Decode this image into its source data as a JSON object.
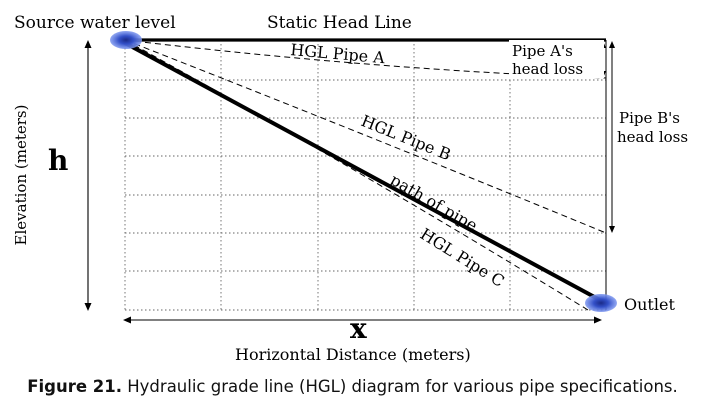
{
  "labels": {
    "source_water_level": "Source water level",
    "static_head_line": "Static Head Line",
    "hgl_pipe_a": "HGL Pipe A",
    "hgl_pipe_b": "HGL Pipe B",
    "hgl_pipe_c": "HGL Pipe C",
    "path_of_pipe": "path of pipe",
    "pipe_a_head_loss_line1": "Pipe A's",
    "pipe_a_head_loss_line2": "head loss",
    "pipe_b_head_loss_line1": "Pipe B's",
    "pipe_b_head_loss_line2": "head loss",
    "outlet": "Outlet",
    "elevation_axis": "Elevation (meters)",
    "height_symbol": "h",
    "distance_symbol": "x",
    "horizontal_axis": "Horizontal Distance (meters)"
  },
  "caption": {
    "label": "Figure 21.",
    "text": " Hydraulic grade line (HGL) diagram for various pipe specifications."
  },
  "colors": {
    "line": "#000000",
    "node_glow": "#5577dd",
    "grid": "#555555"
  }
}
